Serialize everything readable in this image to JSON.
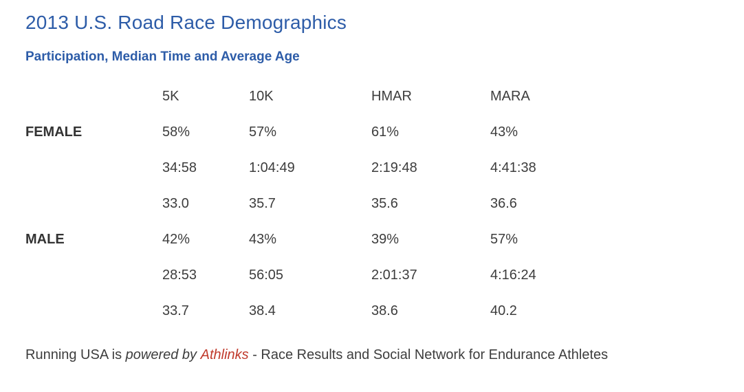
{
  "page": {
    "title": "2013 U.S. Road Race Demographics",
    "subtitle": "Participation, Median Time and Average Age"
  },
  "colors": {
    "heading_blue": "#2d5ca8",
    "link_red": "#c0392b",
    "text_dark": "#3d3d3d"
  },
  "table": {
    "headers": [
      "5K",
      "10K",
      "HMAR",
      "MARA"
    ],
    "rows": [
      {
        "label": "FEMALE",
        "cells": [
          "58%",
          "57%",
          "61%",
          "43%"
        ]
      },
      {
        "label": "",
        "cells": [
          "34:58",
          "1:04:49",
          "2:19:48",
          "4:41:38"
        ]
      },
      {
        "label": "",
        "cells": [
          "33.0",
          "35.7",
          "35.6",
          "36.6"
        ]
      },
      {
        "label": "MALE",
        "cells": [
          "42%",
          "43%",
          "39%",
          "57%"
        ]
      },
      {
        "label": "",
        "cells": [
          "28:53",
          "56:05",
          "2:01:37",
          "4:16:24"
        ]
      },
      {
        "label": "",
        "cells": [
          "33.7",
          "38.4",
          "38.6",
          "40.2"
        ]
      }
    ]
  },
  "footer": {
    "prefix": "Running USA is",
    "powered_by": "powered by",
    "link_label": "Athlinks",
    "suffix": "- Race Results and Social Network for Endurance Athletes"
  },
  "chart_data": {
    "type": "table",
    "title": "2013 U.S. Road Race Demographics",
    "subtitle": "Participation, Median Time and Average Age",
    "columns": [
      "5K",
      "10K",
      "HMAR",
      "MARA"
    ],
    "row_groups": [
      {
        "group": "FEMALE",
        "participation": [
          "58%",
          "57%",
          "61%",
          "43%"
        ],
        "median_time": [
          "34:58",
          "1:04:49",
          "2:19:48",
          "4:41:38"
        ],
        "average_age": [
          "33.0",
          "35.7",
          "35.6",
          "36.6"
        ]
      },
      {
        "group": "MALE",
        "participation": [
          "42%",
          "43%",
          "39%",
          "57%"
        ],
        "median_time": [
          "28:53",
          "56:05",
          "2:01:37",
          "4:16:24"
        ],
        "average_age": [
          "33.7",
          "38.4",
          "38.6",
          "40.2"
        ]
      }
    ],
    "footer_note": "Running USA is powered by Athlinks - Race Results and Social Network for Endurance Athletes"
  }
}
